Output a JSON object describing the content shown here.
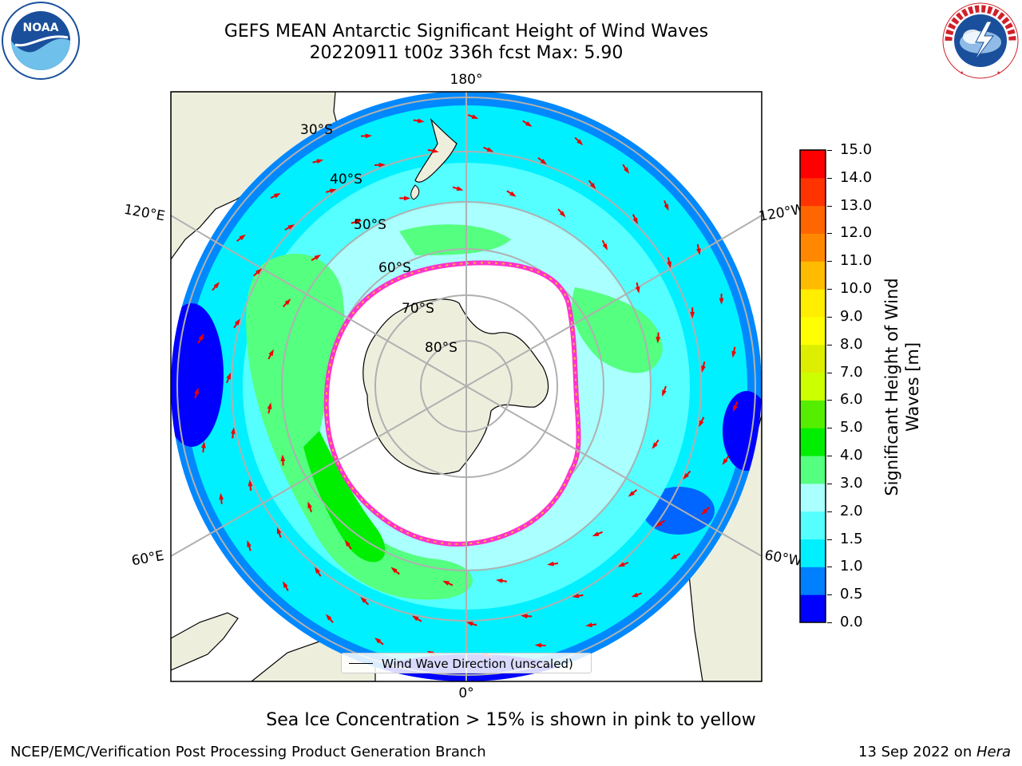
{
  "title": {
    "line1": "GEFS MEAN Antarctic Significant Height of Wind Waves",
    "line2": "20220911 t00z 336h fcst   Max: 5.90"
  },
  "logos": {
    "left": {
      "name": "NOAA",
      "text": "NOAA",
      "ring_text": "NATIONAL OCEANIC AND ATMOSPHERIC ADMINISTRATION · U.S. DEPARTMENT OF COMMERCE"
    },
    "right": {
      "name": "NWS",
      "ring_text": "NATIONAL WEATHER SERVICE"
    }
  },
  "map": {
    "projection": "south polar stereographic",
    "lat_labels": [
      "30°S",
      "40°S",
      "50°S",
      "60°S",
      "70°S",
      "80°S"
    ],
    "lon_labels": {
      "top": "180°",
      "bottom": "0°",
      "upper_left": "120°E",
      "upper_right": "120°W",
      "lower_left": "60°E",
      "lower_right": "60°W"
    },
    "colors": {
      "ocean_light": "#00ffff",
      "land": "#eeeedd",
      "ice_edge": "#ff33cc",
      "arrow": "#ee0000",
      "grid": "#b0b0b0"
    },
    "legend_label": "Wind Wave Direction (unscaled)"
  },
  "colorbar": {
    "label_line1": "Significant Height of Wind",
    "label_line2": "Waves [m]",
    "ticks": [
      "0.0",
      "0.5",
      "1.0",
      "1.5",
      "2.0",
      "3.0",
      "4.0",
      "5.0",
      "6.0",
      "7.0",
      "8.0",
      "9.0",
      "10.0",
      "11.0",
      "12.0",
      "13.0",
      "14.0",
      "15.0"
    ],
    "colors": [
      "#0000ff",
      "#0080ff",
      "#00f0ff",
      "#55ffff",
      "#aaffff",
      "#55ff80",
      "#00ee00",
      "#55ee00",
      "#ccff00",
      "#ddee00",
      "#ffff00",
      "#ffee00",
      "#ffbb00",
      "#ff8800",
      "#ff6600",
      "#ff3300",
      "#ff0000"
    ]
  },
  "footer": {
    "ice_note": "Sea Ice Concentration > 15% is shown in pink to yellow",
    "credit": "NCEP/EMC/Verification Post Processing Product Generation Branch",
    "date": "13 Sep 2022 on ",
    "machine": "Hera"
  }
}
